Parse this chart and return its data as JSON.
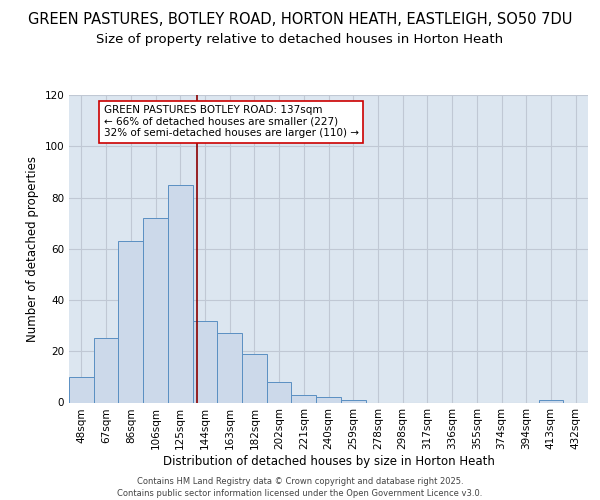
{
  "title_line1": "GREEN PASTURES, BOTLEY ROAD, HORTON HEATH, EASTLEIGH, SO50 7DU",
  "title_line2": "Size of property relative to detached houses in Horton Heath",
  "xlabel": "Distribution of detached houses by size in Horton Heath",
  "ylabel": "Number of detached properties",
  "bar_labels": [
    "48sqm",
    "67sqm",
    "86sqm",
    "106sqm",
    "125sqm",
    "144sqm",
    "163sqm",
    "182sqm",
    "202sqm",
    "221sqm",
    "240sqm",
    "259sqm",
    "278sqm",
    "298sqm",
    "317sqm",
    "336sqm",
    "355sqm",
    "374sqm",
    "394sqm",
    "413sqm",
    "432sqm"
  ],
  "bar_values": [
    10,
    25,
    63,
    72,
    85,
    32,
    27,
    19,
    8,
    3,
    2,
    1,
    0,
    0,
    0,
    0,
    0,
    0,
    0,
    1,
    0
  ],
  "bar_color": "#ccd9ea",
  "bar_edge_color": "#5a8fc2",
  "ylim": [
    0,
    120
  ],
  "yticks": [
    0,
    20,
    40,
    60,
    80,
    100,
    120
  ],
  "grid_color": "#c0c8d4",
  "background_color": "#dce6f0",
  "vline_x_index": 4.68,
  "vline_color": "#8b0000",
  "annotation_text": "GREEN PASTURES BOTLEY ROAD: 137sqm\n← 66% of detached houses are smaller (227)\n32% of semi-detached houses are larger (110) →",
  "annotation_box_color": "white",
  "annotation_box_edge": "#cc0000",
  "footer_text": "Contains HM Land Registry data © Crown copyright and database right 2025.\nContains public sector information licensed under the Open Government Licence v3.0.",
  "title_fontsize": 10.5,
  "subtitle_fontsize": 9.5,
  "ylabel_fontsize": 8.5,
  "xlabel_fontsize": 8.5,
  "tick_fontsize": 7.5,
  "annotation_fontsize": 7.5,
  "footer_fontsize": 6.0
}
